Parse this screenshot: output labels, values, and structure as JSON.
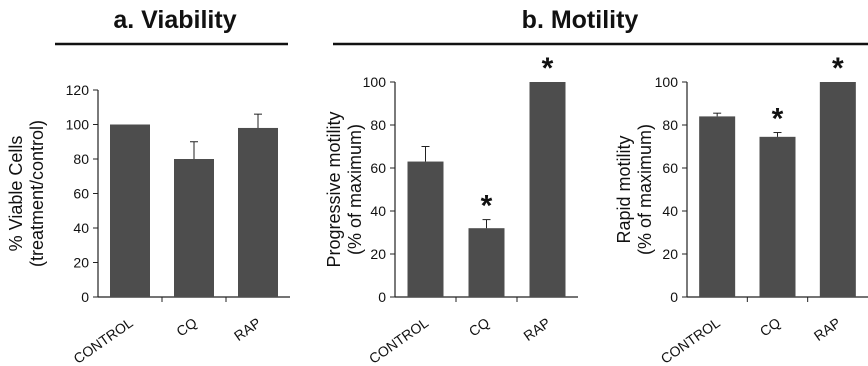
{
  "panel_titles": {
    "a": "a. Viability",
    "b": "b. Motility"
  },
  "colors": {
    "bar": "#4d4d4d",
    "axis": "#222222",
    "text": "#111111"
  },
  "chart_data": [
    {
      "type": "bar",
      "title": "",
      "categories": [
        "CONTROL",
        "CQ",
        "RAP"
      ],
      "values": [
        100,
        80,
        98
      ],
      "errors": [
        0,
        10,
        8
      ],
      "significance": [
        "",
        "",
        ""
      ],
      "ylabel_lines": [
        "% Viable Cells",
        "(treatment/control)"
      ],
      "ylim": [
        0,
        120
      ],
      "yticks": [
        0,
        20,
        40,
        60,
        80,
        100,
        120
      ]
    },
    {
      "type": "bar",
      "title": "",
      "categories": [
        "CONTROL",
        "CQ",
        "RAP"
      ],
      "values": [
        63,
        32,
        100
      ],
      "errors": [
        7,
        4,
        0
      ],
      "significance": [
        "",
        "*",
        "*"
      ],
      "ylabel_lines": [
        "Progressive motility",
        "(% of maximum)"
      ],
      "ylim": [
        0,
        100
      ],
      "yticks": [
        0,
        20,
        40,
        60,
        80,
        100
      ]
    },
    {
      "type": "bar",
      "title": "",
      "categories": [
        "CONTROL",
        "CQ",
        "RAP"
      ],
      "values": [
        84,
        74.5,
        100
      ],
      "errors": [
        1.5,
        2,
        0
      ],
      "significance": [
        "",
        "*",
        "*"
      ],
      "ylabel_lines": [
        "Rapid motility",
        "(% of maximum)"
      ],
      "ylim": [
        0,
        100
      ],
      "yticks": [
        0,
        20,
        40,
        60,
        80,
        100
      ]
    }
  ]
}
